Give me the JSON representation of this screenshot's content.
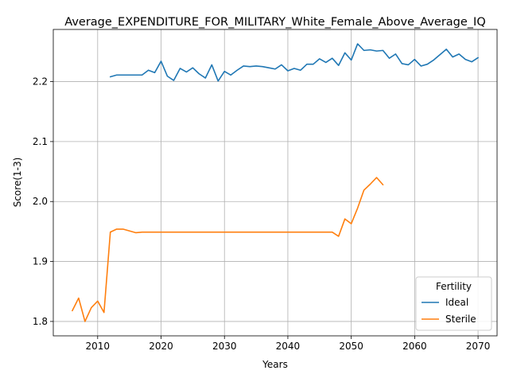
{
  "chart_data": {
    "type": "line",
    "title": "Average_EXPENDITURE_FOR_MILITARY_White_Female_Above_Average_IQ",
    "xlabel": "Years",
    "ylabel": "Score(1-3)",
    "xlim": [
      2003,
      2073
    ],
    "ylim": [
      1.776,
      2.287
    ],
    "grid": true,
    "x_ticks": [
      2010,
      2020,
      2030,
      2040,
      2050,
      2060,
      2070
    ],
    "y_ticks": [
      1.8,
      1.9,
      2.0,
      2.1,
      2.2
    ],
    "x_tick_labels": [
      "2010",
      "2020",
      "2030",
      "2040",
      "2050",
      "2060",
      "2070"
    ],
    "y_tick_labels": [
      "1.8",
      "1.9",
      "2.0",
      "2.1",
      "2.2"
    ],
    "legend": {
      "title": "Fertility",
      "placement": "lower-right"
    },
    "series": [
      {
        "name": "Ideal",
        "color": "#1f77b4",
        "x": [
          2012,
          2013,
          2014,
          2015,
          2016,
          2017,
          2018,
          2019,
          2020,
          2021,
          2022,
          2023,
          2024,
          2025,
          2026,
          2027,
          2028,
          2029,
          2030,
          2031,
          2032,
          2033,
          2034,
          2035,
          2036,
          2037,
          2038,
          2039,
          2040,
          2041,
          2042,
          2043,
          2044,
          2045,
          2046,
          2047,
          2048,
          2049,
          2050,
          2051,
          2052,
          2053,
          2054,
          2055,
          2056,
          2057,
          2058,
          2059,
          2060,
          2061,
          2062,
          2063,
          2064,
          2065,
          2066,
          2067,
          2068,
          2069,
          2070
        ],
        "y": [
          2.208,
          2.211,
          2.211,
          2.211,
          2.211,
          2.211,
          2.219,
          2.215,
          2.234,
          2.209,
          2.202,
          2.222,
          2.216,
          2.223,
          2.213,
          2.206,
          2.228,
          2.201,
          2.217,
          2.211,
          2.219,
          2.226,
          2.225,
          2.226,
          2.225,
          2.223,
          2.221,
          2.228,
          2.218,
          2.222,
          2.219,
          2.229,
          2.229,
          2.238,
          2.232,
          2.239,
          2.227,
          2.248,
          2.236,
          2.263,
          2.252,
          2.253,
          2.251,
          2.252,
          2.239,
          2.246,
          2.23,
          2.228,
          2.237,
          2.226,
          2.229,
          2.236,
          2.245,
          2.254,
          2.241,
          2.246,
          2.237,
          2.233,
          2.24
        ]
      },
      {
        "name": "Sterile",
        "color": "#ff7f0e",
        "x": [
          2006,
          2007,
          2008,
          2009,
          2010,
          2011,
          2012,
          2013,
          2014,
          2015,
          2016,
          2017,
          2018,
          2019,
          2020,
          2021,
          2022,
          2023,
          2024,
          2025,
          2026,
          2027,
          2028,
          2029,
          2030,
          2031,
          2032,
          2033,
          2034,
          2035,
          2036,
          2037,
          2038,
          2039,
          2040,
          2041,
          2042,
          2043,
          2044,
          2045,
          2046,
          2047,
          2048,
          2049,
          2050,
          2051,
          2052,
          2053,
          2054,
          2055
        ],
        "y": [
          1.818,
          1.839,
          1.8,
          1.823,
          1.834,
          1.815,
          1.949,
          1.954,
          1.954,
          1.951,
          1.948,
          1.949,
          1.949,
          1.949,
          1.949,
          1.949,
          1.949,
          1.949,
          1.949,
          1.949,
          1.949,
          1.949,
          1.949,
          1.949,
          1.949,
          1.949,
          1.949,
          1.949,
          1.949,
          1.949,
          1.949,
          1.949,
          1.949,
          1.949,
          1.949,
          1.949,
          1.949,
          1.949,
          1.949,
          1.949,
          1.949,
          1.949,
          1.942,
          1.971,
          1.963,
          1.989,
          2.019,
          2.029,
          2.04,
          2.028
        ]
      }
    ]
  }
}
